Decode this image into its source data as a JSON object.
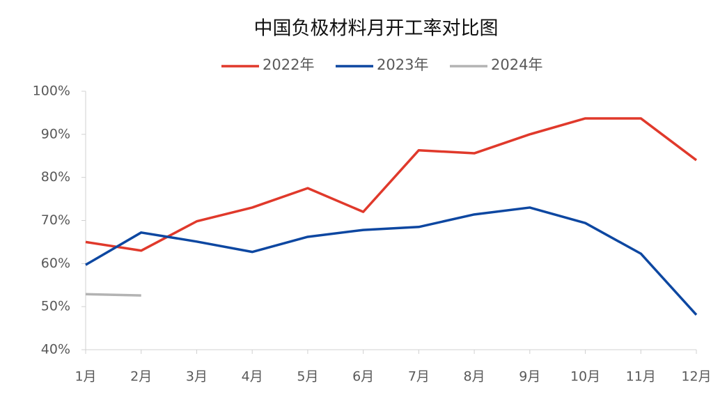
{
  "chart_data": {
    "type": "line",
    "title": "中国负极材料月开工率对比图",
    "categories": [
      "1月",
      "2月",
      "3月",
      "4月",
      "5月",
      "6月",
      "7月",
      "8月",
      "9月",
      "10月",
      "11月",
      "12月"
    ],
    "series": [
      {
        "name": "2022年",
        "color": "#e0392b",
        "values": [
          65,
          63,
          69.8,
          73,
          77.5,
          72,
          86.3,
          85.6,
          90,
          93.7,
          93.7,
          84
        ]
      },
      {
        "name": "2023年",
        "color": "#0d47a1",
        "values": [
          59.7,
          67.2,
          65.1,
          62.7,
          66.2,
          67.8,
          68.5,
          71.4,
          73,
          69.4,
          62.3,
          48.1
        ]
      },
      {
        "name": "2024年",
        "color": "#b3b3b3",
        "values": [
          52.9,
          52.6,
          null,
          null,
          null,
          null,
          null,
          null,
          null,
          null,
          null,
          null
        ]
      }
    ],
    "ylim": [
      40,
      100
    ],
    "yticks": [
      {
        "value": 40,
        "label": "40%"
      },
      {
        "value": 50,
        "label": "50%"
      },
      {
        "value": 60,
        "label": "60%"
      },
      {
        "value": 70,
        "label": "70%"
      },
      {
        "value": 80,
        "label": "80%"
      },
      {
        "value": 90,
        "label": "90%"
      },
      {
        "value": 100,
        "label": "100%"
      }
    ],
    "grid": false,
    "legend": "top"
  }
}
